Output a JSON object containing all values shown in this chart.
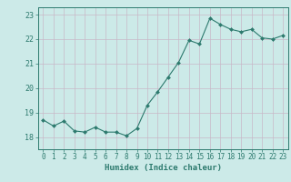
{
  "x": [
    0,
    1,
    2,
    3,
    4,
    5,
    6,
    7,
    8,
    9,
    10,
    11,
    12,
    13,
    14,
    15,
    16,
    17,
    18,
    19,
    20,
    21,
    22,
    23
  ],
  "y": [
    18.7,
    18.45,
    18.65,
    18.25,
    18.2,
    18.4,
    18.2,
    18.2,
    18.05,
    18.35,
    19.3,
    19.85,
    20.45,
    21.05,
    21.95,
    21.8,
    22.85,
    22.6,
    22.4,
    22.3,
    22.4,
    22.05,
    22.0,
    22.15
  ],
  "xlabel": "Humidex (Indice chaleur)",
  "ylim": [
    17.5,
    23.3
  ],
  "xlim": [
    -0.5,
    23.5
  ],
  "yticks": [
    18,
    19,
    20,
    21,
    22,
    23
  ],
  "xticks": [
    0,
    1,
    2,
    3,
    4,
    5,
    6,
    7,
    8,
    9,
    10,
    11,
    12,
    13,
    14,
    15,
    16,
    17,
    18,
    19,
    20,
    21,
    22,
    23
  ],
  "xtick_labels": [
    "0",
    "1",
    "2",
    "3",
    "4",
    "5",
    "6",
    "7",
    "8",
    "9",
    "10",
    "11",
    "12",
    "13",
    "14",
    "15",
    "16",
    "17",
    "18",
    "19",
    "20",
    "21",
    "22",
    "23"
  ],
  "line_color": "#2d7a6e",
  "marker": "D",
  "marker_size": 2.0,
  "bg_color": "#cceae8",
  "grid_color": "#c8b8c8",
  "axis_color": "#2d7a6e",
  "label_color": "#2d7a6e",
  "tick_color": "#2d7a6e",
  "tick_fontsize": 5.5,
  "xlabel_fontsize": 6.5
}
